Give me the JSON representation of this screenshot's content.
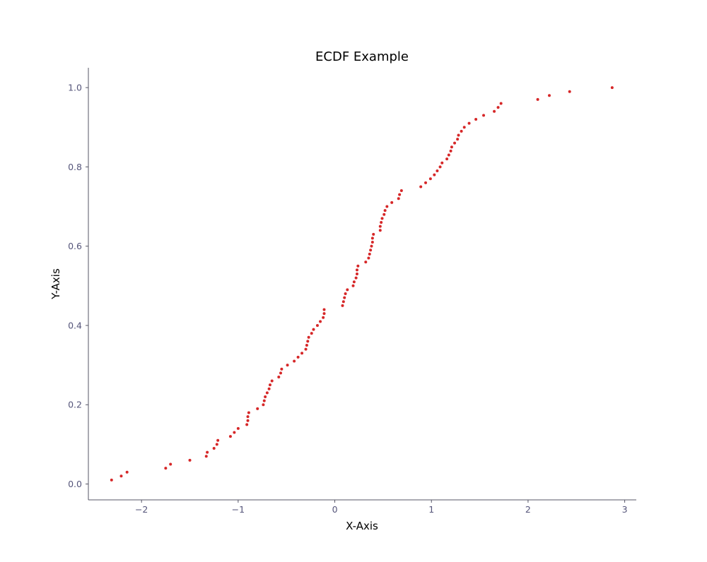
{
  "chart_data": {
    "type": "scatter",
    "title": "ECDF Example",
    "xlabel": "X-Axis",
    "ylabel": "Y-Axis",
    "xlim": [
      -2.55,
      3.12
    ],
    "ylim": [
      -0.04,
      1.05
    ],
    "xticks": [
      -2,
      -1,
      0,
      1,
      2,
      3
    ],
    "yticks": [
      0.0,
      0.2,
      0.4,
      0.6,
      0.8,
      1.0
    ],
    "xtick_labels": [
      "−2",
      "−1",
      "0",
      "1",
      "2",
      "3"
    ],
    "ytick_labels": [
      "0.0",
      "0.2",
      "0.4",
      "0.6",
      "0.8",
      "1.0"
    ],
    "grid": false,
    "colors": {
      "points": "#d62728",
      "axis": "#555566",
      "tick_text": "#55557a"
    },
    "series": [
      {
        "points": [
          [
            -2.31,
            0.01
          ],
          [
            -2.21,
            0.02
          ],
          [
            -2.15,
            0.03
          ],
          [
            -1.75,
            0.04
          ],
          [
            -1.7,
            0.05
          ],
          [
            -1.5,
            0.06
          ],
          [
            -1.33,
            0.07
          ],
          [
            -1.32,
            0.08
          ],
          [
            -1.25,
            0.09
          ],
          [
            -1.22,
            0.1
          ],
          [
            -1.21,
            0.11
          ],
          [
            -1.08,
            0.12
          ],
          [
            -1.04,
            0.13
          ],
          [
            -1.0,
            0.14
          ],
          [
            -0.91,
            0.15
          ],
          [
            -0.9,
            0.16
          ],
          [
            -0.9,
            0.17
          ],
          [
            -0.89,
            0.18
          ],
          [
            -0.8,
            0.19
          ],
          [
            -0.74,
            0.2
          ],
          [
            -0.73,
            0.21
          ],
          [
            -0.72,
            0.22
          ],
          [
            -0.7,
            0.23
          ],
          [
            -0.68,
            0.24
          ],
          [
            -0.67,
            0.25
          ],
          [
            -0.65,
            0.26
          ],
          [
            -0.58,
            0.27
          ],
          [
            -0.56,
            0.28
          ],
          [
            -0.55,
            0.29
          ],
          [
            -0.49,
            0.3
          ],
          [
            -0.42,
            0.31
          ],
          [
            -0.38,
            0.32
          ],
          [
            -0.34,
            0.33
          ],
          [
            -0.3,
            0.34
          ],
          [
            -0.29,
            0.35
          ],
          [
            -0.28,
            0.36
          ],
          [
            -0.27,
            0.37
          ],
          [
            -0.24,
            0.38
          ],
          [
            -0.22,
            0.39
          ],
          [
            -0.18,
            0.4
          ],
          [
            -0.15,
            0.41
          ],
          [
            -0.12,
            0.42
          ],
          [
            -0.11,
            0.43
          ],
          [
            -0.11,
            0.44
          ],
          [
            0.08,
            0.45
          ],
          [
            0.09,
            0.46
          ],
          [
            0.1,
            0.47
          ],
          [
            0.11,
            0.48
          ],
          [
            0.13,
            0.49
          ],
          [
            0.19,
            0.5
          ],
          [
            0.2,
            0.51
          ],
          [
            0.22,
            0.52
          ],
          [
            0.23,
            0.53
          ],
          [
            0.23,
            0.54
          ],
          [
            0.24,
            0.55
          ],
          [
            0.32,
            0.56
          ],
          [
            0.35,
            0.57
          ],
          [
            0.36,
            0.58
          ],
          [
            0.37,
            0.59
          ],
          [
            0.38,
            0.6
          ],
          [
            0.39,
            0.61
          ],
          [
            0.39,
            0.62
          ],
          [
            0.4,
            0.63
          ],
          [
            0.47,
            0.64
          ],
          [
            0.47,
            0.65
          ],
          [
            0.48,
            0.66
          ],
          [
            0.49,
            0.67
          ],
          [
            0.51,
            0.68
          ],
          [
            0.52,
            0.69
          ],
          [
            0.54,
            0.7
          ],
          [
            0.59,
            0.71
          ],
          [
            0.66,
            0.72
          ],
          [
            0.67,
            0.73
          ],
          [
            0.69,
            0.74
          ],
          [
            0.89,
            0.75
          ],
          [
            0.94,
            0.76
          ],
          [
            0.99,
            0.77
          ],
          [
            1.03,
            0.78
          ],
          [
            1.06,
            0.79
          ],
          [
            1.09,
            0.8
          ],
          [
            1.11,
            0.81
          ],
          [
            1.16,
            0.82
          ],
          [
            1.18,
            0.83
          ],
          [
            1.2,
            0.84
          ],
          [
            1.21,
            0.85
          ],
          [
            1.24,
            0.86
          ],
          [
            1.27,
            0.87
          ],
          [
            1.28,
            0.88
          ],
          [
            1.31,
            0.89
          ],
          [
            1.34,
            0.9
          ],
          [
            1.39,
            0.91
          ],
          [
            1.46,
            0.92
          ],
          [
            1.54,
            0.93
          ],
          [
            1.65,
            0.94
          ],
          [
            1.69,
            0.95
          ],
          [
            1.72,
            0.96
          ],
          [
            2.1,
            0.97
          ],
          [
            2.22,
            0.98
          ],
          [
            2.43,
            0.99
          ],
          [
            2.87,
            1.0
          ]
        ]
      }
    ]
  }
}
